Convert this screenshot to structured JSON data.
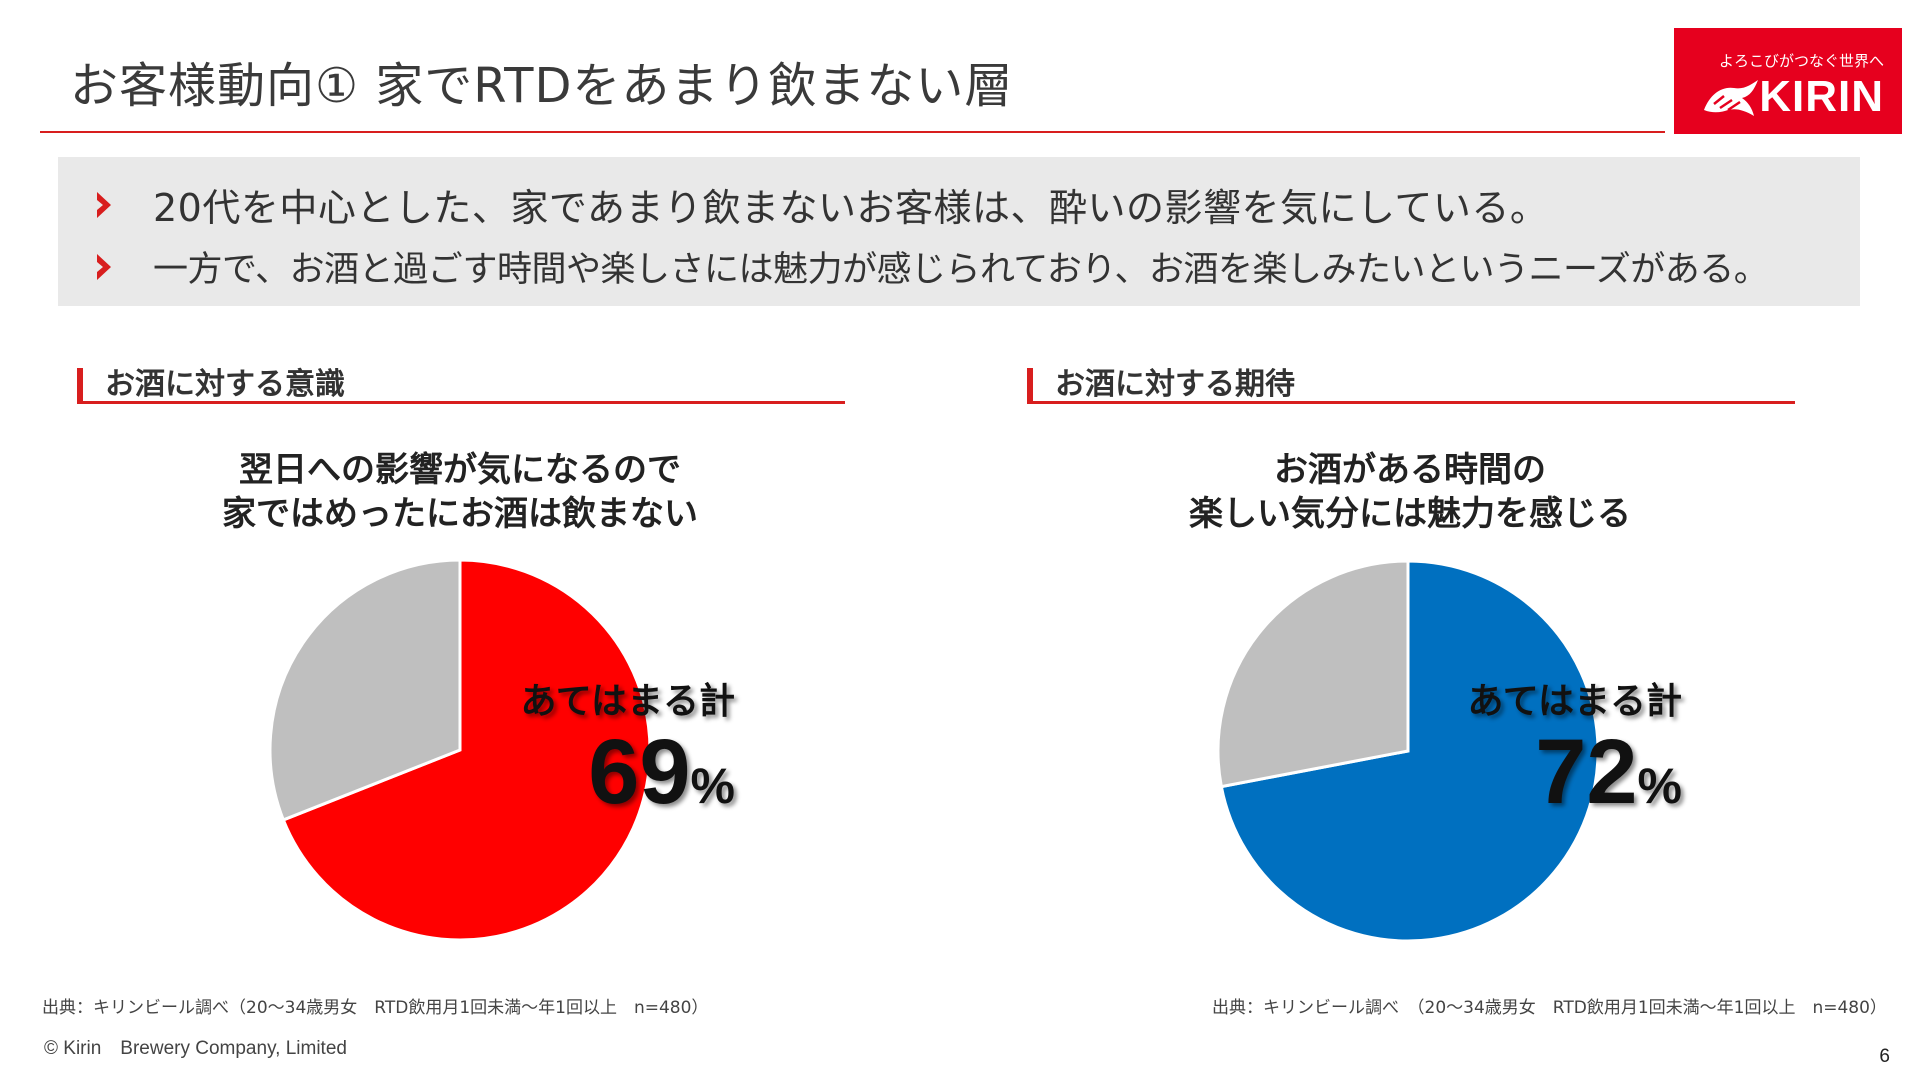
{
  "header": {
    "title": "お客様動向① 家でRTDをあまり飲まない層",
    "logo": {
      "tagline": "よろこびがつなぐ世界へ",
      "name": "KIRIN",
      "bg_color": "#e6001e"
    }
  },
  "summary": {
    "bullets": [
      "20代を中心とした、家であまり飲まないお客様は、酔いの影響を気にしている。",
      "一方で、お酒と過ごす時間や楽しさには魅力が感じられており、お酒を楽しみたいというニーズがある。"
    ],
    "bullet_icon": "chevron-right-icon",
    "bullet_color": "#d81e1e"
  },
  "sections": [
    {
      "heading": "お酒に対する意識",
      "question_lines": [
        "翌日への影響が気になるので",
        "家ではめったにお酒は飲まない"
      ],
      "caption": "あてはまる計",
      "value_text": "69",
      "unit": "%",
      "source": "出典：キリンビール調べ（20～34歳男女　RTD飲用月1回未満～年1回以上　n=480）"
    },
    {
      "heading": "お酒に対する期待",
      "question_lines": [
        "お酒がある時間の",
        "楽しい気分には魅力を感じる"
      ],
      "caption": "あてはまる計",
      "value_text": "72",
      "unit": "%",
      "source": "出典：キリンビール調べ　（20～34歳男女　RTD飲用月1回未満～年1回以上　n=480）"
    }
  ],
  "chart_data": [
    {
      "type": "pie",
      "title": "翌日への影響が気になるので家ではめったにお酒は飲まない",
      "slices": [
        {
          "label": "あてはまる計",
          "value": 69,
          "color": "#ff0000"
        },
        {
          "label": "",
          "value": 31,
          "color": "#bfbfbf"
        }
      ],
      "start_angle": "12 o'clock",
      "direction": "clockwise"
    },
    {
      "type": "pie",
      "title": "お酒がある時間の楽しい気分には魅力を感じる",
      "slices": [
        {
          "label": "あてはまる計",
          "value": 72,
          "color": "#0070c0"
        },
        {
          "label": "",
          "value": 28,
          "color": "#bfbfbf"
        }
      ],
      "start_angle": "12 o'clock",
      "direction": "clockwise"
    }
  ],
  "footer": {
    "copyright": "© Kirin　Brewery Company, Limited",
    "page_number": "6"
  }
}
